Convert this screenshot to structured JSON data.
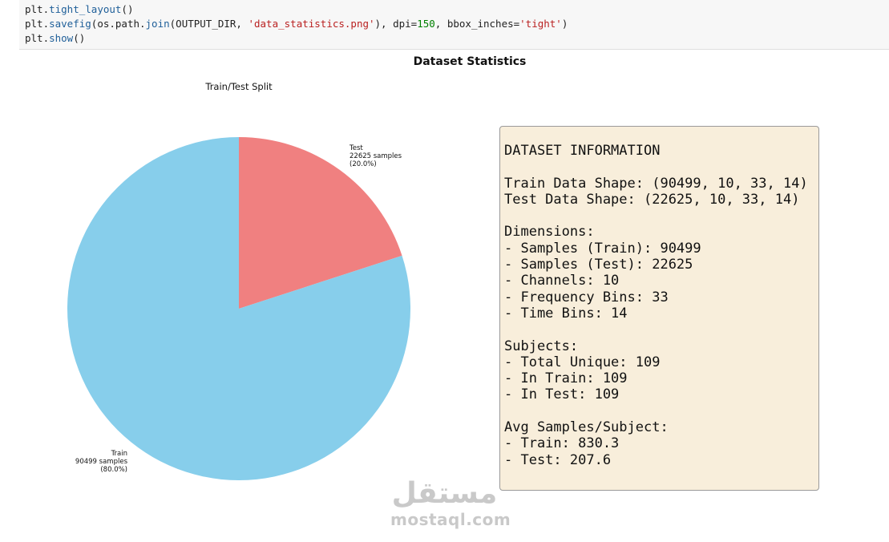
{
  "code": {
    "line1": {
      "prefix": "plt.",
      "fn": "tight_layout",
      "suffix": "()"
    },
    "line2": {
      "prefix": "plt.",
      "fn": "savefig",
      "mid1": "(os.path.",
      "fn2": "join",
      "mid2": "(OUTPUT_DIR, ",
      "str1": "'data_statistics.png'",
      "mid3": "), dpi=",
      "num1": "150",
      "mid4": ", bbox_inches=",
      "str2": "'tight'",
      "suffix": ")"
    },
    "line3": {
      "prefix": "plt.",
      "fn": "show",
      "suffix": "()"
    }
  },
  "figure": {
    "title": "Dataset Statistics"
  },
  "chart_data": {
    "type": "pie",
    "title": "Train/Test Split",
    "slices": [
      {
        "name": "Test",
        "value": 22625,
        "label_samples": "22625 samples",
        "label_pct": "(20.0%)",
        "color": "#f08080"
      },
      {
        "name": "Train",
        "value": 90499,
        "label_samples": "90499 samples",
        "label_pct": "(80.0%)",
        "color": "#87ceeb"
      }
    ],
    "start_angle": 90,
    "direction": "clockwise"
  },
  "info_box": {
    "text": "DATASET INFORMATION\n\nTrain Data Shape: (90499, 10, 33, 14)\nTest Data Shape: (22625, 10, 33, 14)\n\nDimensions:\n- Samples (Train): 90499\n- Samples (Test): 22625\n- Channels: 10\n- Frequency Bins: 33\n- Time Bins: 14\n\nSubjects:\n- Total Unique: 109\n- In Train: 109\n- In Test: 109\n\nAvg Samples/Subject:\n- Train: 830.3\n- Test: 207.6",
    "background": "#f8eedb"
  },
  "watermark": {
    "arabic": "مستقل",
    "latin": "mostaql.com"
  }
}
